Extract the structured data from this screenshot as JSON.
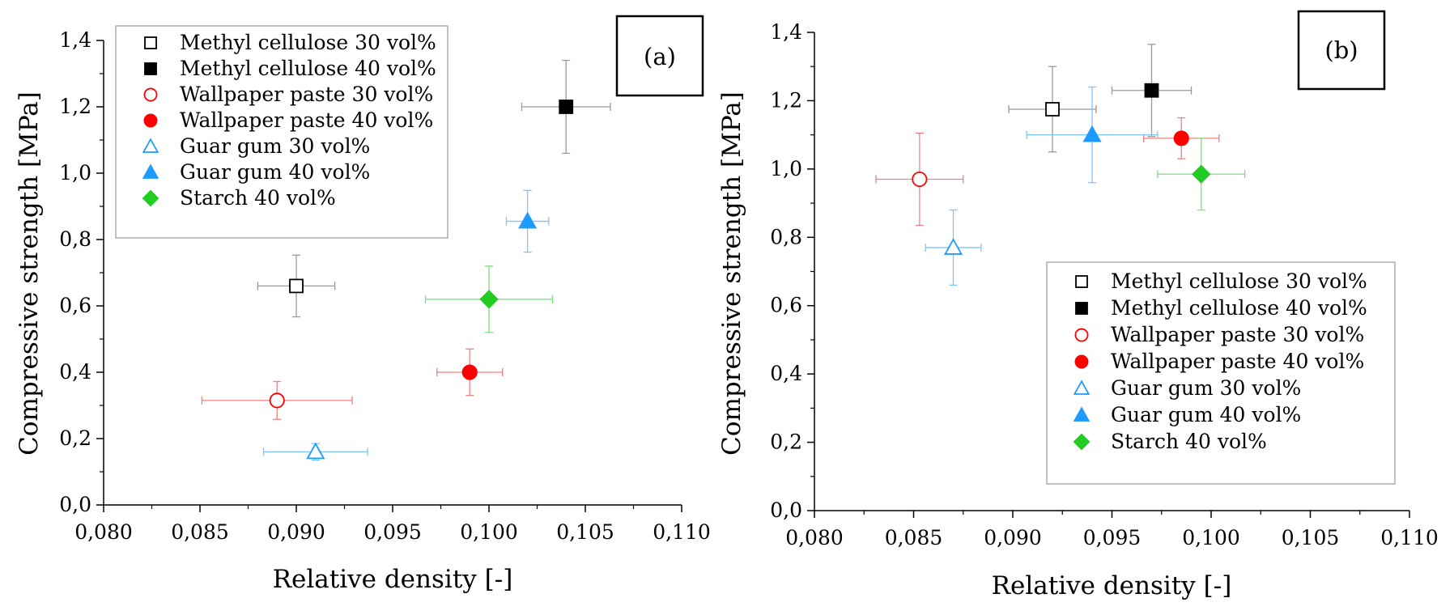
{
  "chart_data": [
    {
      "type": "scatter",
      "panel_label": "(a)",
      "xlabel": "Relative density [-]",
      "ylabel": "Compressive strength [MPa]",
      "xlim": [
        0.08,
        0.11
      ],
      "ylim": [
        0.0,
        1.4
      ],
      "x_tick_labels": [
        "0,080",
        "0,085",
        "0,090",
        "0,095",
        "0,100",
        "0,105",
        "0,110"
      ],
      "y_tick_labels": [
        "0,0",
        "0,2",
        "0,4",
        "0,6",
        "0,8",
        "1,0",
        "1,2",
        "1,4"
      ],
      "grid": false,
      "legend_position": "top-left",
      "series": [
        {
          "name": "Methyl cellulose 30 vol%",
          "marker": "square",
          "filled": false,
          "color": "#000000",
          "errcolor": "#999999",
          "points": [
            {
              "x": 0.09,
              "y": 0.66,
              "xerr": 0.002,
              "yerr": 0.093
            }
          ]
        },
        {
          "name": "Methyl cellulose 40 vol%",
          "marker": "square",
          "filled": true,
          "color": "#000000",
          "errcolor": "#999999",
          "points": [
            {
              "x": 0.104,
              "y": 1.2,
              "xerr": 0.0023,
              "yerr": 0.14
            }
          ]
        },
        {
          "name": "Wallpaper paste 30 vol%",
          "marker": "circle",
          "filled": false,
          "color": "#ff0000",
          "errcolor": "#f08080",
          "points": [
            {
              "x": 0.089,
              "y": 0.315,
              "xerr": 0.0039,
              "yerr": 0.057
            }
          ]
        },
        {
          "name": "Wallpaper paste 40 vol%",
          "marker": "circle",
          "filled": true,
          "color": "#ff0000",
          "errcolor": "#f08080",
          "points": [
            {
              "x": 0.099,
              "y": 0.4,
              "xerr": 0.0017,
              "yerr": 0.07
            }
          ]
        },
        {
          "name": "Guar gum 30 vol%",
          "marker": "triangle",
          "filled": false,
          "color": "#1e9bff",
          "errcolor": "#7cc4ff",
          "points": [
            {
              "x": 0.091,
              "y": 0.16,
              "xerr": 0.0027,
              "yerr": 0.025
            }
          ]
        },
        {
          "name": "Guar gum 40 vol%",
          "marker": "triangle",
          "filled": true,
          "color": "#1e9bff",
          "errcolor": "#7cc4ff",
          "points": [
            {
              "x": 0.102,
              "y": 0.855,
              "xerr": 0.0011,
              "yerr": 0.093
            }
          ]
        },
        {
          "name": "Starch 40 vol%",
          "marker": "diamond",
          "filled": true,
          "color": "#22cc22",
          "errcolor": "#7fe07f",
          "points": [
            {
              "x": 0.1,
              "y": 0.62,
              "xerr": 0.0033,
              "yerr": 0.1
            }
          ]
        }
      ]
    },
    {
      "type": "scatter",
      "panel_label": "(b)",
      "xlabel": "Relative density [-]",
      "ylabel": "Compressive strength [MPa]",
      "xlim": [
        0.08,
        0.11
      ],
      "ylim": [
        0.0,
        1.4
      ],
      "x_tick_labels": [
        "0,080",
        "0,085",
        "0,090",
        "0,095",
        "0,100",
        "0,105",
        "0,110"
      ],
      "y_tick_labels": [
        "0,0",
        "0,2",
        "0,4",
        "0,6",
        "0,8",
        "1,0",
        "1,2",
        "1,4"
      ],
      "grid": false,
      "legend_position": "bottom-right",
      "series": [
        {
          "name": "Methyl cellulose 30 vol%",
          "marker": "square",
          "filled": false,
          "color": "#000000",
          "errcolor": "#999999",
          "points": [
            {
              "x": 0.092,
              "y": 1.175,
              "xerr": 0.0022,
              "yerr": 0.125
            }
          ]
        },
        {
          "name": "Methyl cellulose 40 vol%",
          "marker": "square",
          "filled": true,
          "color": "#000000",
          "errcolor": "#999999",
          "points": [
            {
              "x": 0.097,
              "y": 1.23,
              "xerr": 0.002,
              "yerr": 0.135
            }
          ]
        },
        {
          "name": "Wallpaper paste 30 vol%",
          "marker": "circle",
          "filled": false,
          "color": "#ff0000",
          "errcolor": "#f08080",
          "points": [
            {
              "x": 0.0853,
              "y": 0.97,
              "xerr": 0.0022,
              "yerr": 0.135
            }
          ]
        },
        {
          "name": "Wallpaper paste 40 vol%",
          "marker": "circle",
          "filled": true,
          "color": "#ff0000",
          "errcolor": "#f08080",
          "points": [
            {
              "x": 0.0985,
              "y": 1.09,
              "xerr": 0.0019,
              "yerr": 0.06
            }
          ]
        },
        {
          "name": "Guar gum 30 vol%",
          "marker": "triangle",
          "filled": false,
          "color": "#1e9bff",
          "errcolor": "#7cc4ff",
          "points": [
            {
              "x": 0.087,
              "y": 0.77,
              "xerr": 0.0014,
              "yerr": 0.11
            }
          ]
        },
        {
          "name": "Guar gum 40 vol%",
          "marker": "triangle",
          "filled": true,
          "color": "#1e9bff",
          "errcolor": "#7cc4ff",
          "points": [
            {
              "x": 0.094,
              "y": 1.1,
              "xerr": 0.0033,
              "yerr": 0.14
            }
          ]
        },
        {
          "name": "Starch 40 vol%",
          "marker": "diamond",
          "filled": true,
          "color": "#22cc22",
          "errcolor": "#7fe07f",
          "points": [
            {
              "x": 0.0995,
              "y": 0.985,
              "xerr": 0.0022,
              "yerr": 0.105
            }
          ]
        }
      ]
    }
  ]
}
